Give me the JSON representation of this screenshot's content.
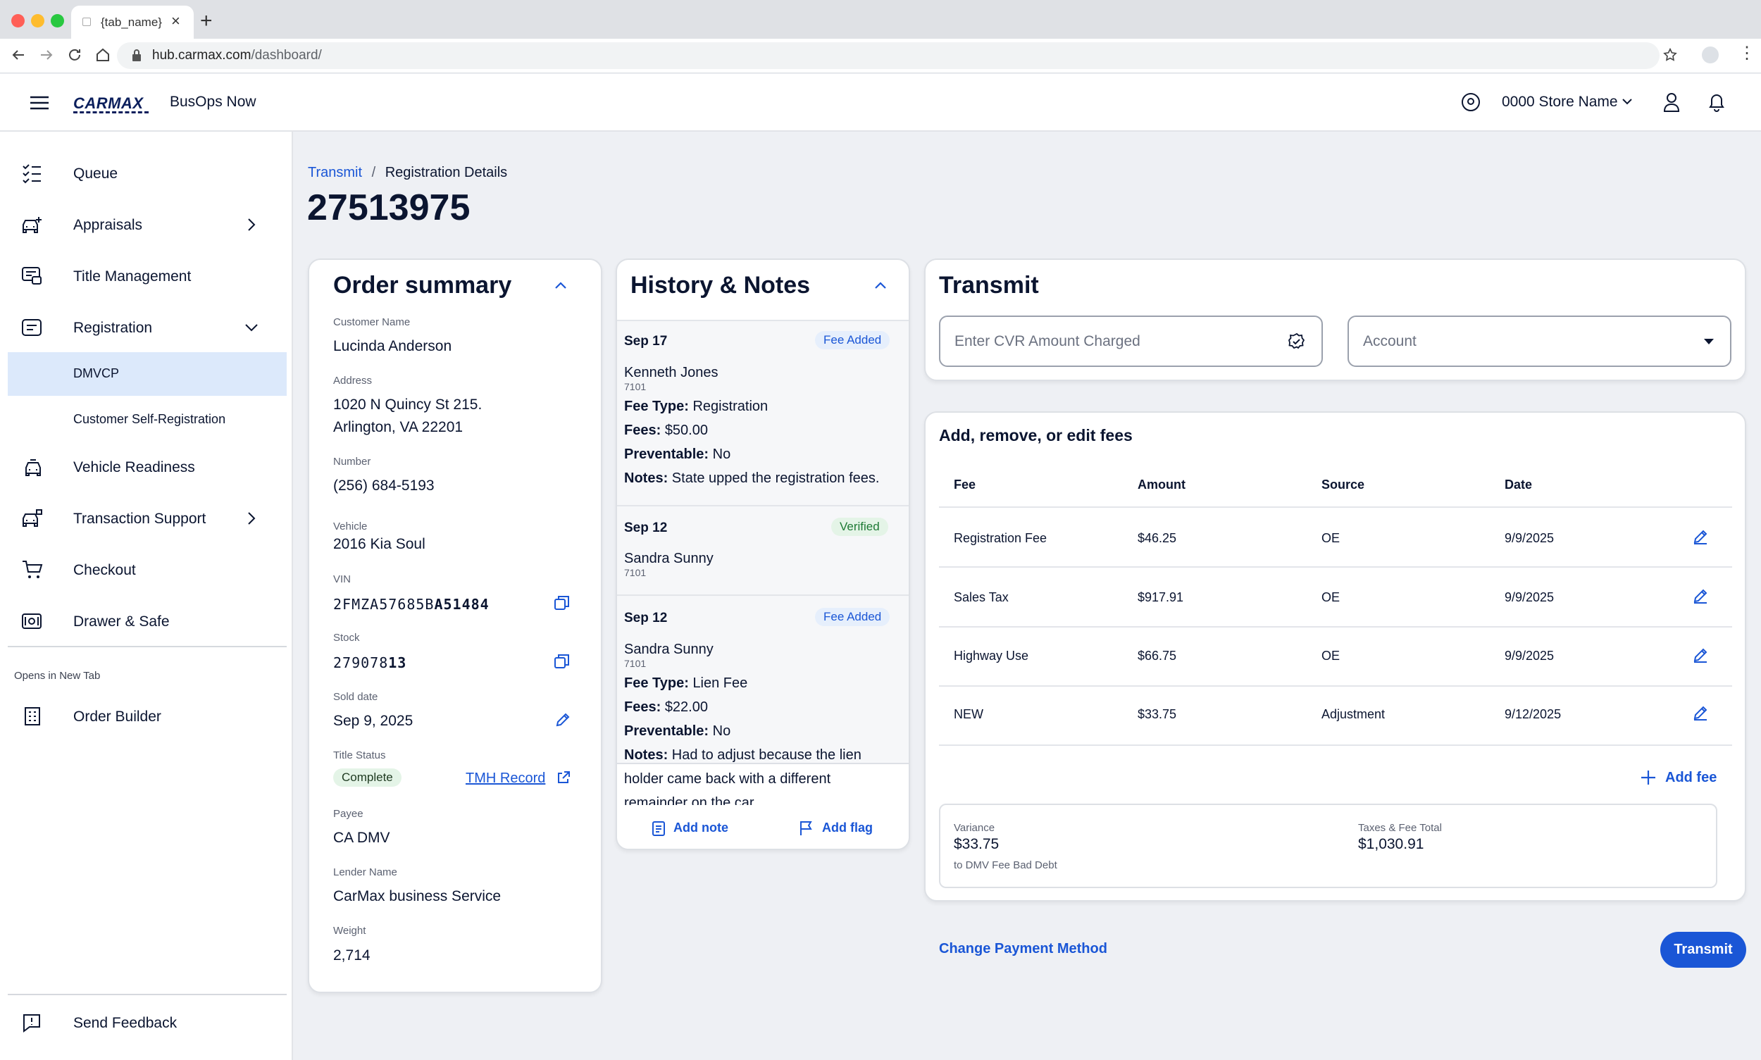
{
  "browser": {
    "tab_name": "{tab_name}",
    "url_host": "hub.carmax.com",
    "url_path": "/dashboard/"
  },
  "header": {
    "logo": "CARMAX",
    "app_name": "BusOps Now",
    "store_name": "0000 Store Name"
  },
  "sidebar": {
    "items": [
      {
        "label": "Queue"
      },
      {
        "label": "Appraisals"
      },
      {
        "label": "Title Management"
      },
      {
        "label": "Registration"
      },
      {
        "label": "DMVCP"
      },
      {
        "label": "Customer Self-Registration"
      },
      {
        "label": "Vehicle Readiness"
      },
      {
        "label": "Transaction Support"
      },
      {
        "label": "Checkout"
      },
      {
        "label": "Drawer & Safe"
      }
    ],
    "new_tab_heading": "Opens in New Tab",
    "order_builder": "Order Builder",
    "feedback": "Send Feedback"
  },
  "breadcrumb": {
    "link": "Transmit",
    "separator": "/",
    "current": "Registration Details"
  },
  "page_title": "27513975",
  "order_summary": {
    "title": "Order summary",
    "customer_label": "Customer Name",
    "customer": "Lucinda Anderson",
    "address_label": "Address",
    "address_line1": "1020 N Quincy St 215.",
    "address_line2": "Arlington, VA 22201",
    "number_label": "Number",
    "number": "(256) 684-5193",
    "vehicle_label": "Vehicle",
    "vehicle": "2016 Kia Soul",
    "vin_label": "VIN",
    "vin_prefix": "2FMZA57685B",
    "vin_suffix": "A51484",
    "stock_label": "Stock",
    "stock_prefix": "279078",
    "stock_suffix": "13",
    "sold_label": "Sold date",
    "sold": "Sep 9, 2025",
    "title_status_label": "Title Status",
    "title_status": "Complete",
    "tmh_link": "TMH Record",
    "payee_label": "Payee",
    "payee": "CA DMV",
    "lender_label": "Lender Name",
    "lender": "CarMax business Service",
    "weight_label": "Weight",
    "weight": "2,714"
  },
  "history": {
    "title": "History & Notes",
    "entries": [
      {
        "date": "Sep 17",
        "badge": "Fee Added",
        "name": "Kenneth Jones",
        "id": "7101",
        "fee_type_label": "Fee Type:",
        "fee_type": "Registration",
        "fees_label": "Fees:",
        "fees": "$50.00",
        "preventable_label": "Preventable:",
        "preventable": "No",
        "notes_label": "Notes:",
        "notes": "State upped the registration fees."
      },
      {
        "date": "Sep 12",
        "badge": "Verified",
        "name": "Sandra Sunny",
        "id": "7101"
      },
      {
        "date": "Sep 12",
        "badge": "Fee Added",
        "name": "Sandra Sunny",
        "id": "7101",
        "fee_type_label": "Fee Type:",
        "fee_type": "Lien Fee",
        "fees_label": "Fees:",
        "fees": "$22.00",
        "preventable_label": "Preventable:",
        "preventable": "No",
        "notes_label": "Notes:",
        "notes_line1": "Had to adjust because the lien",
        "notes_line2": "holder came back with a different",
        "notes_line3": "remainder on the car"
      }
    ],
    "add_note": "Add note",
    "add_flag": "Add flag"
  },
  "transmit": {
    "title": "Transmit",
    "cvr_placeholder": "Enter CVR Amount Charged",
    "account_placeholder": "Account"
  },
  "fees": {
    "title": "Add, remove, or edit fees",
    "columns": [
      "Fee",
      "Amount",
      "Source",
      "Date"
    ],
    "rows": [
      [
        "Registration Fee",
        "$46.25",
        "OE",
        "9/9/2025"
      ],
      [
        "Sales Tax",
        "$917.91",
        "OE",
        "9/9/2025"
      ],
      [
        "Highway Use",
        "$66.75",
        "OE",
        "9/9/2025"
      ],
      [
        "NEW",
        "$33.75",
        "Adjustment",
        "9/12/2025"
      ]
    ],
    "add_fee": "Add fee",
    "variance_label": "Variance",
    "variance": "$33.75",
    "variance_note": "to DMV Fee Bad Debt",
    "total_label": "Taxes & Fee Total",
    "total": "$1,030.91"
  },
  "actions": {
    "change_payment": "Change Payment Method",
    "transmit": "Transmit"
  },
  "colors": {
    "brand_blue": "#1a56d6",
    "navy": "#0b1530",
    "selected_bg": "#dce9fb",
    "badge_blue_bg": "#e6effc",
    "badge_green_bg": "#e4f4e7",
    "badge_green_text": "#1e7a35"
  }
}
